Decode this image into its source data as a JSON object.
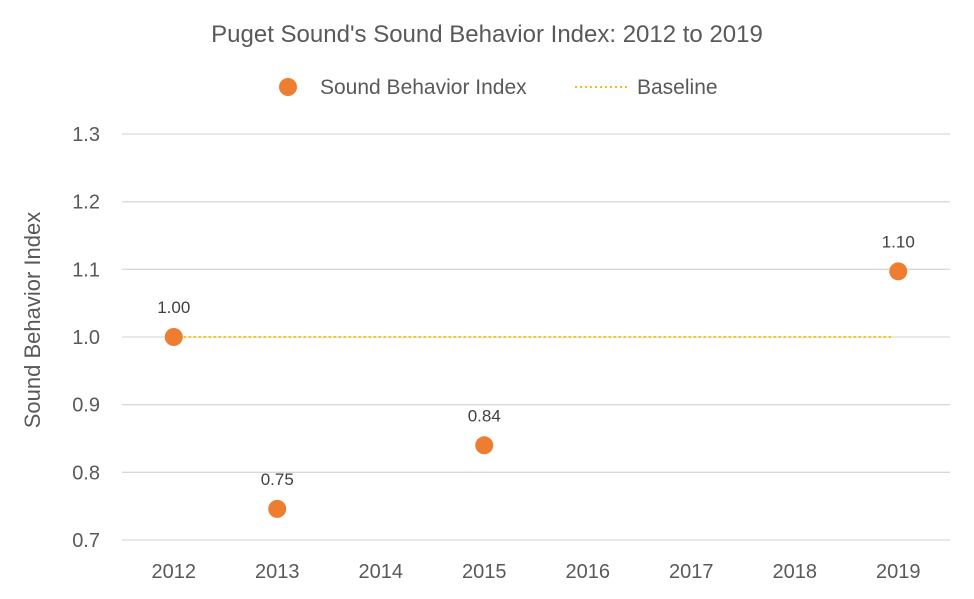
{
  "chart_data": {
    "type": "scatter",
    "title": "Puget Sound's Sound Behavior Index: 2012 to 2019",
    "xlabel": "",
    "ylabel": "Sound Behavior Index",
    "categories": [
      "2012",
      "2013",
      "2014",
      "2015",
      "2016",
      "2017",
      "2018",
      "2019"
    ],
    "ylim": [
      0.7,
      1.3
    ],
    "yticks": [
      "0.7",
      "0.8",
      "0.9",
      "1.0",
      "1.1",
      "1.2",
      "1.3"
    ],
    "grid": true,
    "legend_position": "top",
    "series": [
      {
        "name": "Sound Behavior Index",
        "kind": "markers",
        "color": "#ED7D31",
        "points": [
          {
            "x": "2012",
            "y": 1.0,
            "label": "1.00"
          },
          {
            "x": "2013",
            "y": 0.746,
            "label": "0.75"
          },
          {
            "x": "2015",
            "y": 0.84,
            "label": "0.84"
          },
          {
            "x": "2019",
            "y": 1.097,
            "label": "1.10"
          }
        ]
      },
      {
        "name": "Baseline",
        "kind": "dotted-line",
        "color": "#FFC000",
        "x_start": "2012",
        "x_end": "2019",
        "y": 1.0
      }
    ]
  }
}
